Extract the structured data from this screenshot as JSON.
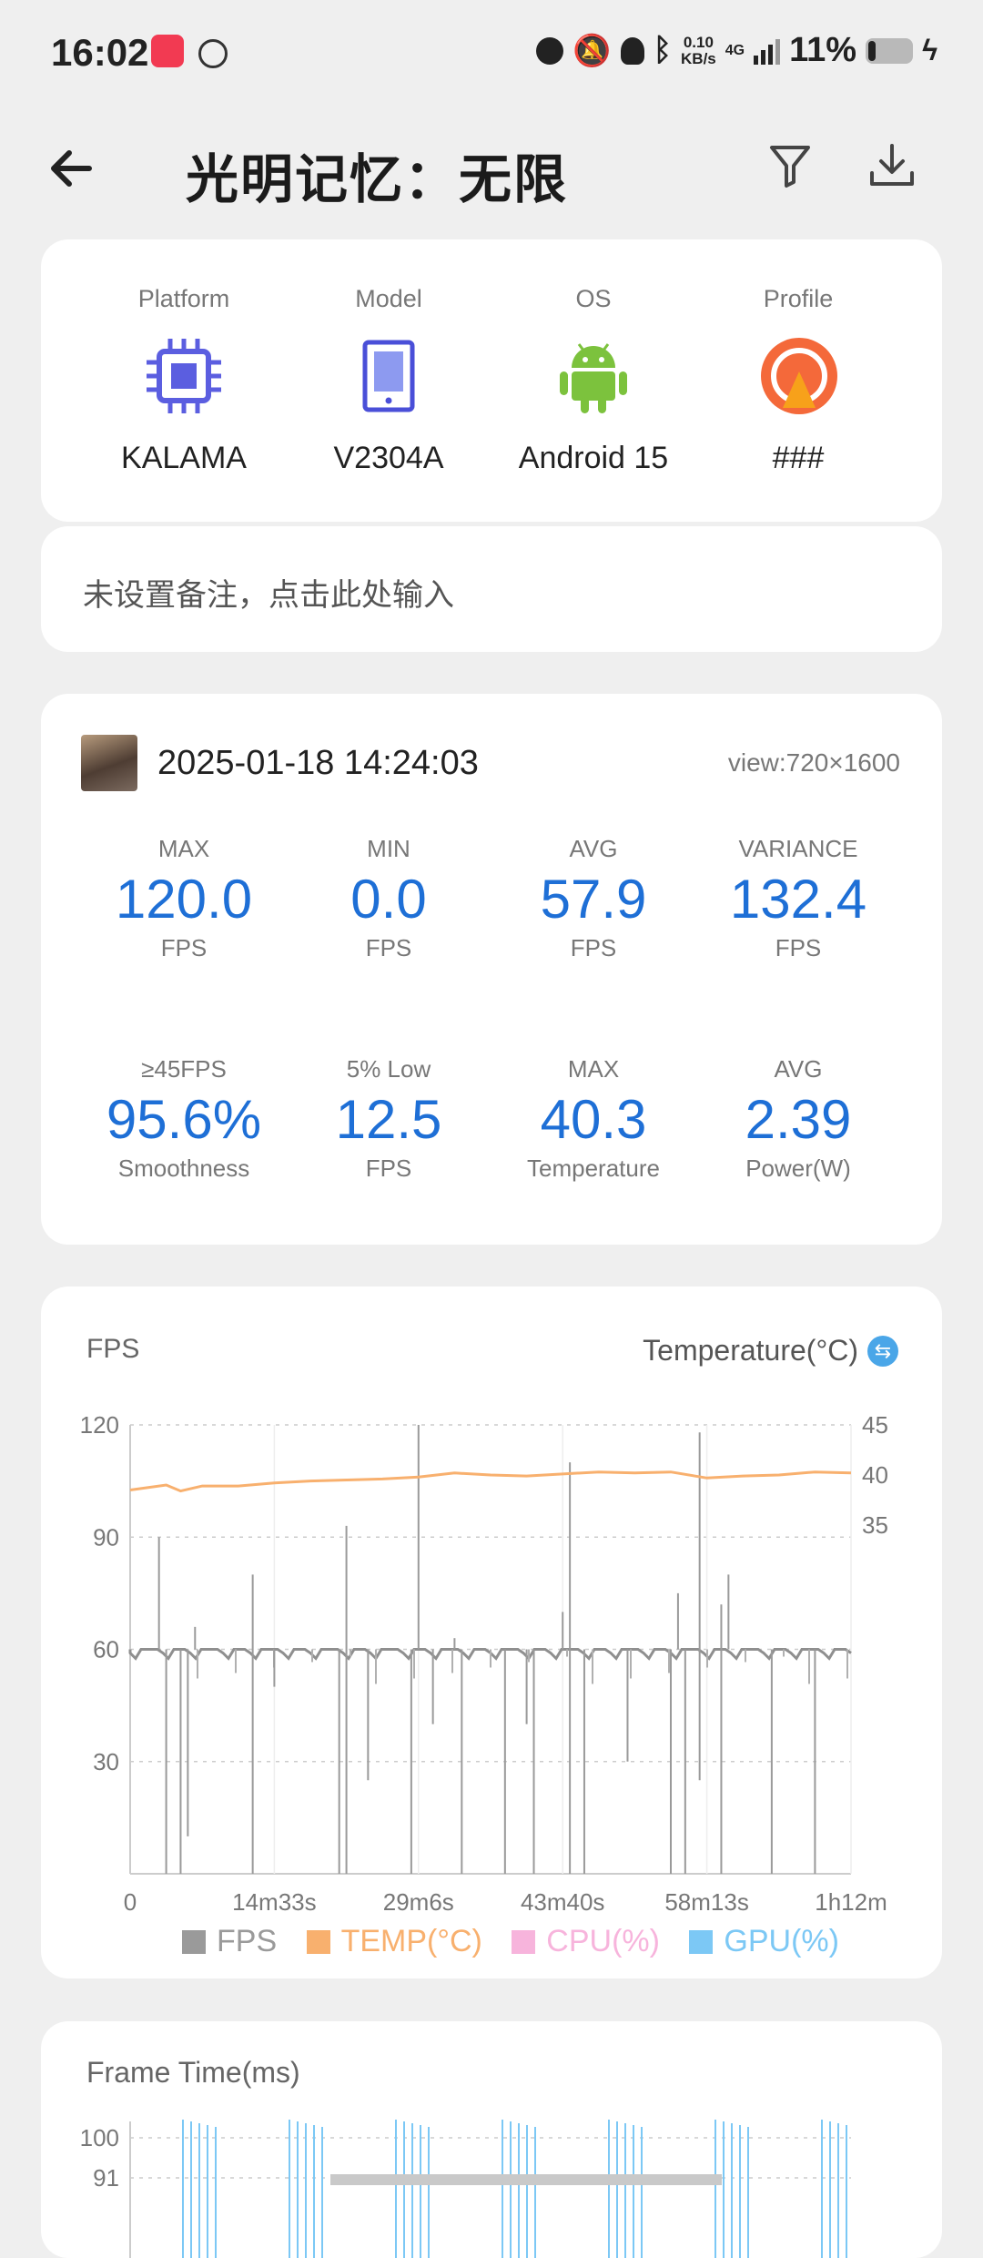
{
  "status_bar": {
    "time": "16:02",
    "net_speed": "0.10\nKB/s",
    "network": "4G",
    "battery": "11%"
  },
  "header": {
    "title": "光明记忆：无限"
  },
  "device": {
    "items": [
      {
        "label": "Platform",
        "value": "KALAMA"
      },
      {
        "label": "Model",
        "value": "V2304A"
      },
      {
        "label": "OS",
        "value": "Android 15"
      },
      {
        "label": "Profile",
        "value": "###"
      }
    ]
  },
  "note": {
    "placeholder": "未设置备注，点击此处输入"
  },
  "session": {
    "datetime": "2025-01-18 14:24:03",
    "view": "view:720×1600",
    "stats": [
      {
        "top": "MAX",
        "value": "120.0",
        "unit": "FPS"
      },
      {
        "top": "MIN",
        "value": "0.0",
        "unit": "FPS"
      },
      {
        "top": "AVG",
        "value": "57.9",
        "unit": "FPS"
      },
      {
        "top": "VARIANCE",
        "value": "132.4",
        "unit": "FPS"
      },
      {
        "top": "≥45FPS",
        "value": "95.6%",
        "unit": "Smoothness"
      },
      {
        "top": "5% Low",
        "value": "12.5",
        "unit": "FPS"
      },
      {
        "top": "MAX",
        "value": "40.3",
        "unit": "Temperature"
      },
      {
        "top": "AVG",
        "value": "2.39",
        "unit": "Power(W)"
      }
    ]
  },
  "fps_chart": {
    "left_title": "FPS",
    "right_title": "Temperature(°C)",
    "legend": [
      "FPS",
      "TEMP(°C)",
      "CPU(%)",
      "GPU(%)"
    ],
    "colors": {
      "fps": "#9a9a9a",
      "temp": "#f8b06e",
      "cpu": "#f7b4dc",
      "gpu": "#7cc8f5"
    }
  },
  "frame_chart": {
    "title": "Frame Time(ms)",
    "y_ticks": [
      "100",
      "91"
    ]
  },
  "chart_data": [
    {
      "type": "line",
      "title": "",
      "xlabel": "",
      "ylabel": "FPS",
      "ylabel_right": "Temperature(°C)",
      "ylim": [
        0,
        120
      ],
      "ylim_right": [
        0,
        45
      ],
      "y_ticks": [
        "120",
        "90",
        "60",
        "30"
      ],
      "y_ticks_right": [
        "45",
        "40",
        "35"
      ],
      "x_ticks": [
        "0",
        "14m33s",
        "29m6s",
        "43m40s",
        "58m13s",
        "1h12m"
      ],
      "series": [
        {
          "name": "FPS",
          "baseline": 60,
          "spikes_up": [
            [
              0.04,
              90
            ],
            [
              0.09,
              66
            ],
            [
              0.17,
              80
            ],
            [
              0.3,
              93
            ],
            [
              0.4,
              120
            ],
            [
              0.45,
              63
            ],
            [
              0.6,
              70
            ],
            [
              0.61,
              110
            ],
            [
              0.76,
              75
            ],
            [
              0.79,
              118
            ],
            [
              0.82,
              72
            ],
            [
              0.83,
              80
            ]
          ],
          "drops": [
            [
              0.05,
              0
            ],
            [
              0.07,
              0
            ],
            [
              0.08,
              10
            ],
            [
              0.17,
              0
            ],
            [
              0.2,
              50
            ],
            [
              0.29,
              0
            ],
            [
              0.3,
              0
            ],
            [
              0.33,
              25
            ],
            [
              0.39,
              0
            ],
            [
              0.42,
              40
            ],
            [
              0.46,
              0
            ],
            [
              0.52,
              0
            ],
            [
              0.55,
              40
            ],
            [
              0.56,
              0
            ],
            [
              0.61,
              0
            ],
            [
              0.63,
              0
            ],
            [
              0.69,
              30
            ],
            [
              0.75,
              0
            ],
            [
              0.77,
              0
            ],
            [
              0.79,
              25
            ],
            [
              0.82,
              0
            ],
            [
              0.89,
              0
            ],
            [
              0.95,
              0
            ]
          ]
        },
        {
          "name": "TEMP(°C)",
          "x": [
            0,
            0.05,
            0.07,
            0.1,
            0.15,
            0.2,
            0.25,
            0.3,
            0.35,
            0.4,
            0.45,
            0.5,
            0.55,
            0.6,
            0.65,
            0.7,
            0.75,
            0.8,
            0.85,
            0.9,
            0.95,
            1.0
          ],
          "values": [
            38.5,
            39.0,
            38.4,
            38.9,
            38.9,
            39.2,
            39.4,
            39.5,
            39.6,
            39.8,
            40.2,
            40.0,
            39.9,
            40.1,
            40.3,
            40.2,
            40.3,
            39.7,
            39.9,
            40.0,
            40.3,
            40.2
          ]
        }
      ]
    },
    {
      "type": "line",
      "title": "Frame Time(ms)",
      "y_ticks": [
        "100",
        "91"
      ]
    }
  ]
}
